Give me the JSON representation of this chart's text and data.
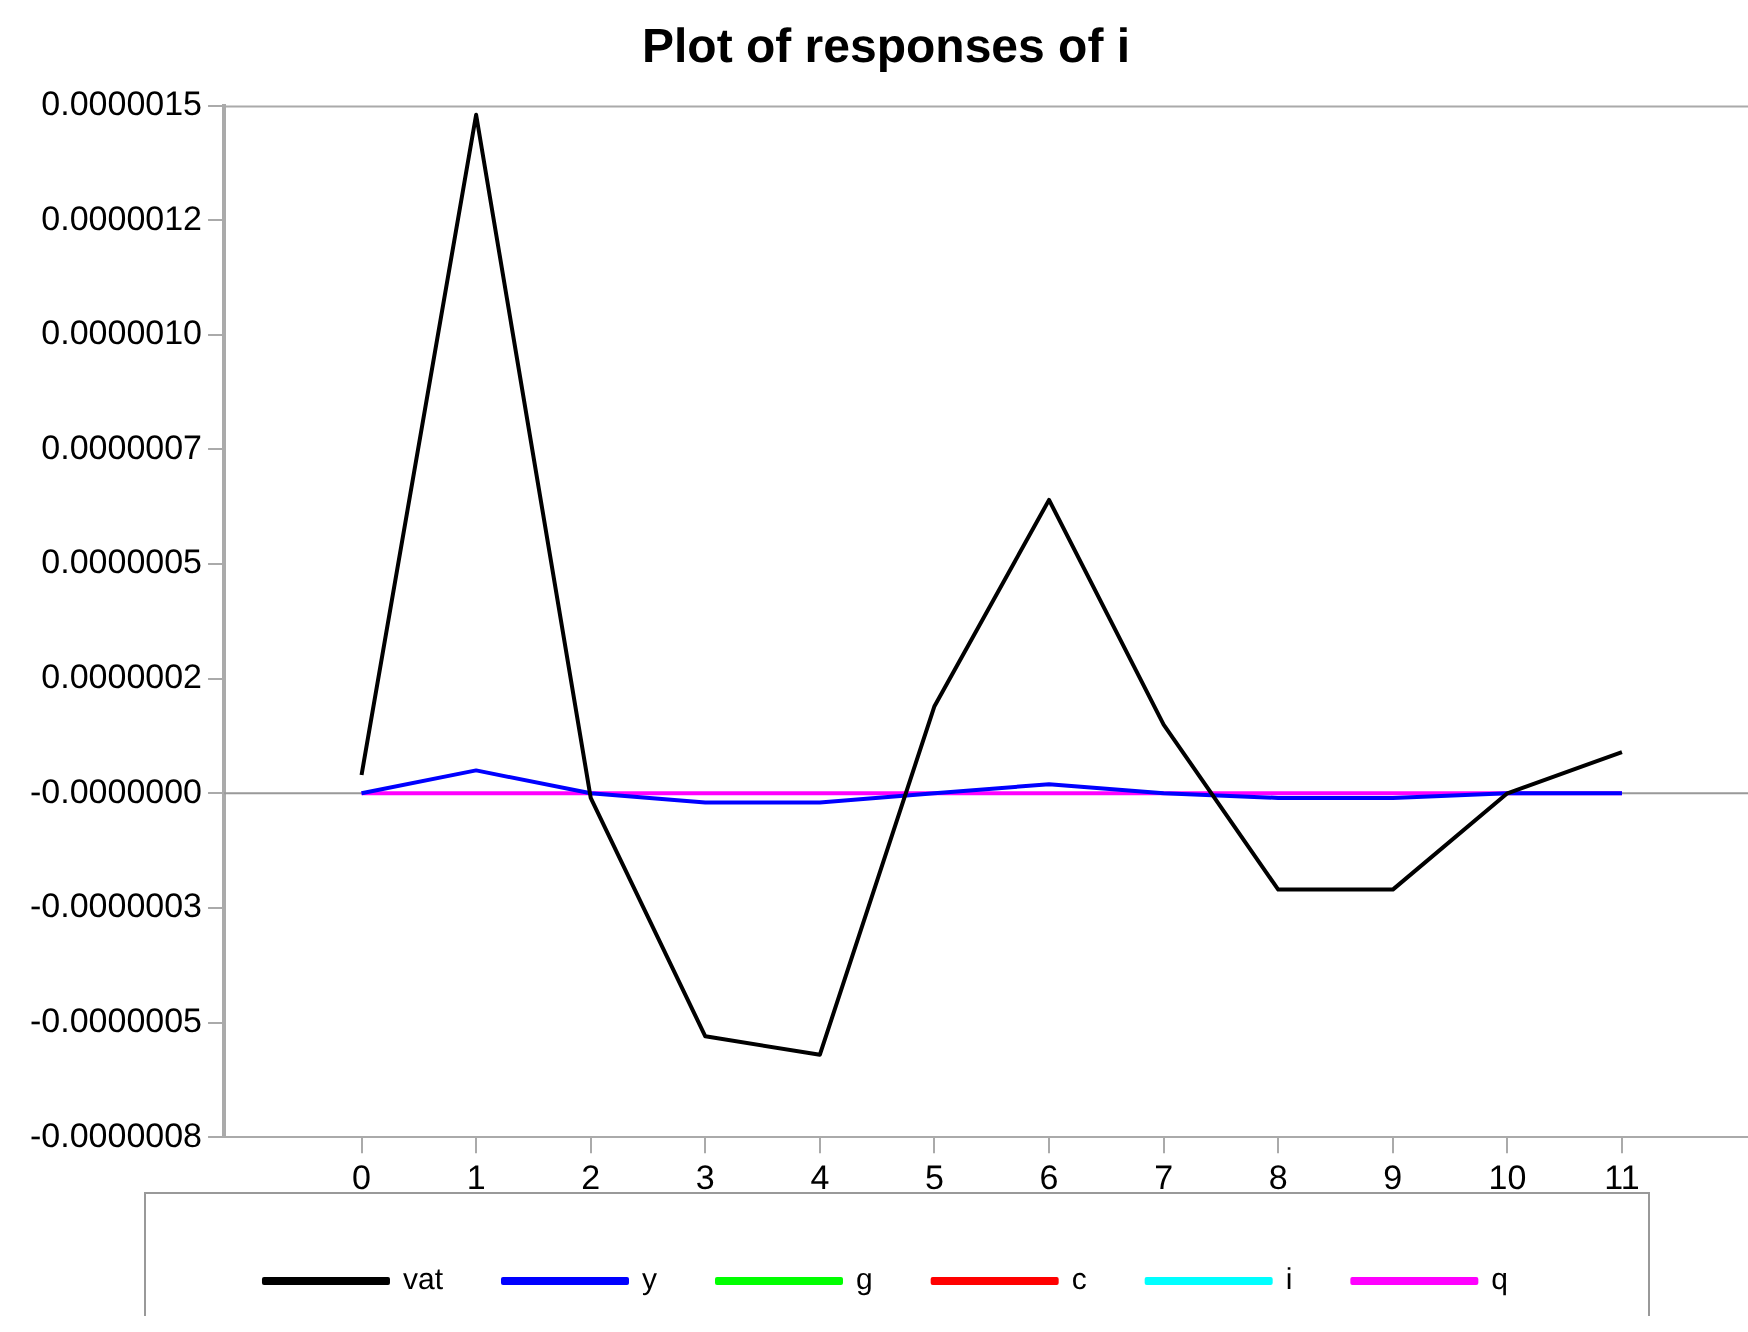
{
  "chart_data": {
    "type": "line",
    "title": "Plot of responses of i",
    "x": [
      0,
      1,
      2,
      3,
      4,
      5,
      6,
      7,
      8,
      9,
      10,
      11
    ],
    "series": [
      {
        "name": "vat",
        "color": "#000000",
        "values": [
          4e-08,
          1.48e-06,
          -1e-08,
          -5.3e-07,
          -5.7e-07,
          1.9e-07,
          6.4e-07,
          1.5e-07,
          -2.1e-07,
          -2.1e-07,
          0,
          9e-08
        ]
      },
      {
        "name": "y",
        "color": "#0000ff",
        "values": [
          0,
          5e-08,
          0,
          -2e-08,
          -2e-08,
          0,
          2e-08,
          0,
          -1e-08,
          -1e-08,
          0,
          0
        ]
      },
      {
        "name": "g",
        "color": "#00ff00",
        "values": [
          null,
          null,
          null,
          null,
          null,
          null,
          null,
          null,
          null,
          null,
          null,
          null
        ]
      },
      {
        "name": "c",
        "color": "#ff0000",
        "values": [
          null,
          null,
          null,
          null,
          null,
          null,
          null,
          null,
          null,
          null,
          null,
          null
        ]
      },
      {
        "name": "i",
        "color": "#00ffff",
        "values": [
          null,
          null,
          null,
          null,
          null,
          null,
          null,
          null,
          null,
          null,
          null,
          null
        ]
      },
      {
        "name": "q",
        "color": "#ff00ff",
        "values": [
          0,
          0,
          0,
          0,
          0,
          0,
          0,
          0,
          0,
          0,
          0,
          0
        ]
      }
    ],
    "xlim": [
      -1.2,
      12.1
    ],
    "xticks": [
      0,
      1,
      2,
      3,
      4,
      5,
      6,
      7,
      8,
      9,
      10,
      11
    ],
    "ylim": [
      -7.5e-07,
      1.5e-06
    ],
    "yticks": [
      {
        "value": 1.5e-06,
        "label": "0.0000015"
      },
      {
        "value": 1.25e-06,
        "label": "0.0000012"
      },
      {
        "value": 1e-06,
        "label": "0.0000010"
      },
      {
        "value": 7.5e-07,
        "label": "0.0000007"
      },
      {
        "value": 5e-07,
        "label": "0.0000005"
      },
      {
        "value": 2.5e-07,
        "label": "0.0000002"
      },
      {
        "value": 0,
        "label": "-0.0000000"
      },
      {
        "value": -2.5e-07,
        "label": "-0.0000003"
      },
      {
        "value": -5e-07,
        "label": "-0.0000005"
      },
      {
        "value": -7.5e-07,
        "label": "-0.0000008"
      }
    ],
    "ref_lines": [
      {
        "axis": "y",
        "value": 0,
        "color": "#999999"
      }
    ],
    "grid": false,
    "legend": "bottom",
    "marker": "none",
    "line_style": "solid"
  }
}
